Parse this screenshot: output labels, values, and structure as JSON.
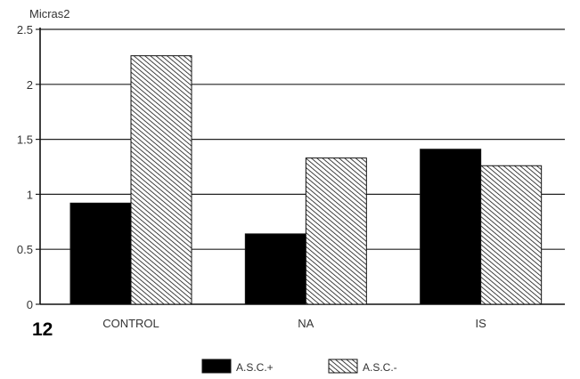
{
  "chart_data": {
    "type": "bar",
    "figure_number": "12",
    "unit_label": "Micras2",
    "categories": [
      "CONTROL",
      "NA",
      "IS"
    ],
    "series": [
      {
        "name": "A.S.C.+",
        "values": [
          0.92,
          0.64,
          1.41
        ],
        "color": "#000000",
        "pattern": "solid"
      },
      {
        "name": "A.S.C.-",
        "values": [
          2.26,
          1.33,
          1.26
        ],
        "color": "#ffffff",
        "pattern": "diagonal-hatch"
      }
    ],
    "ylim": [
      0,
      2.5
    ],
    "yticks": [
      "0",
      "0.5",
      "1",
      "1.5",
      "2",
      "2.5"
    ],
    "grid": true,
    "legend": "bottom-center"
  }
}
